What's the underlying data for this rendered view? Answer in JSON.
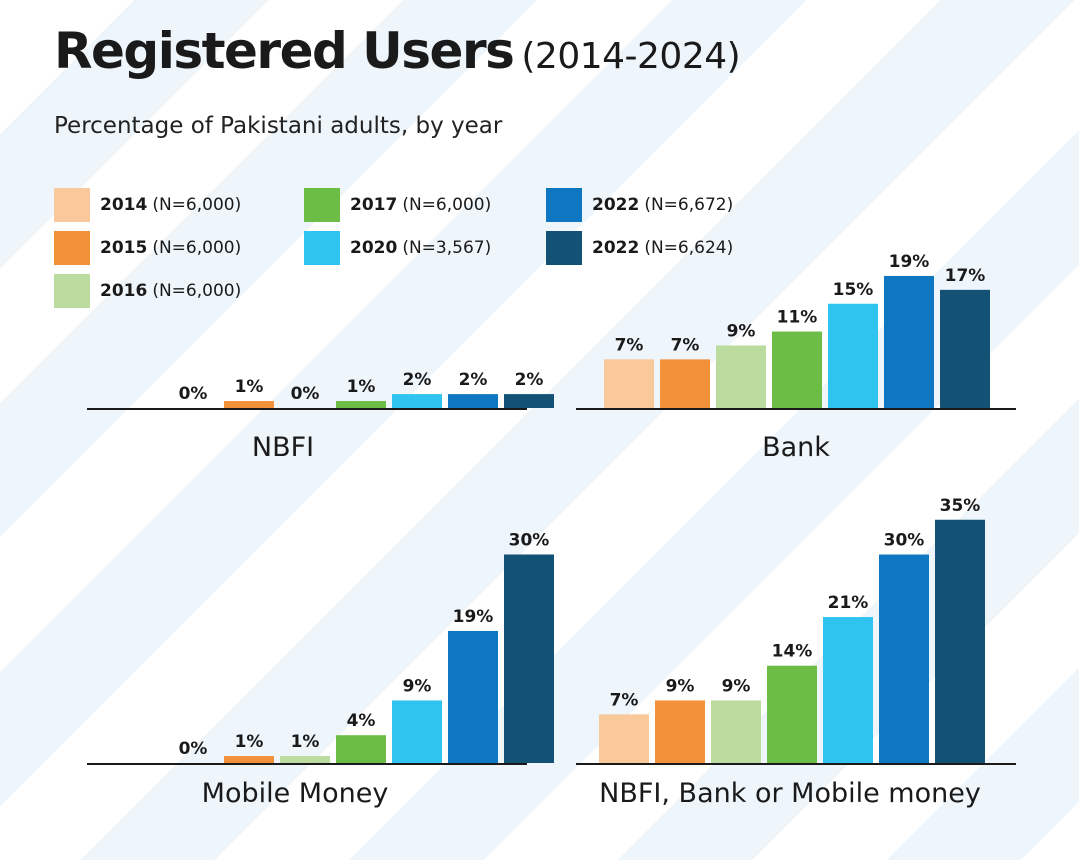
{
  "title": "Registered Users",
  "title_years": "(2014-2024)",
  "subtitle": "Percentage of Pakistani adults, by year",
  "legend": [
    {
      "year": "2014",
      "n": "(N=6,000)",
      "color": "#f9c89b"
    },
    {
      "year": "2015",
      "n": "(N=6,000)",
      "color": "#f3913a"
    },
    {
      "year": "2016",
      "n": "(N=6,000)",
      "color": "#bcdc9f"
    },
    {
      "year": "2017",
      "n": "(N=6,000)",
      "color": "#6bbd45"
    },
    {
      "year": "2020",
      "n": "(N=3,567)",
      "color": "#2ec4ef"
    },
    {
      "year": "2022",
      "n": "(N=6,672)",
      "color": "#0d78c1"
    },
    {
      "year": "2022",
      "n": "(N=6,624)",
      "color": "#135274"
    }
  ],
  "chart_data": [
    {
      "type": "bar",
      "title": "NBFI",
      "categories": [
        "2014",
        "2015",
        "2016",
        "2017",
        "2020",
        "2022",
        "2022"
      ],
      "values": [
        0,
        1,
        0,
        1,
        2,
        2,
        2
      ],
      "value_labels": [
        "0%",
        "1%",
        "0%",
        "1%",
        "2%",
        "2%",
        "2%"
      ],
      "ylim": [
        0,
        35
      ]
    },
    {
      "type": "bar",
      "title": "Bank",
      "categories": [
        "2014",
        "2015",
        "2016",
        "2017",
        "2020",
        "2022",
        "2022"
      ],
      "values": [
        7,
        7,
        9,
        11,
        15,
        19,
        17
      ],
      "value_labels": [
        "7%",
        "7%",
        "9%",
        "11%",
        "15%",
        "19%",
        "17%"
      ],
      "ylim": [
        0,
        35
      ]
    },
    {
      "type": "bar",
      "title": "Mobile Money",
      "categories": [
        "2014",
        "2015",
        "2016",
        "2017",
        "2020",
        "2022",
        "2022"
      ],
      "values": [
        0,
        1,
        1,
        4,
        9,
        19,
        30
      ],
      "value_labels": [
        "0%",
        "1%",
        "1%",
        "4%",
        "9%",
        "19%",
        "30%"
      ],
      "ylim": [
        0,
        35
      ]
    },
    {
      "type": "bar",
      "title": "NBFI, Bank or Mobile money",
      "categories": [
        "2014",
        "2015",
        "2016",
        "2017",
        "2020",
        "2022",
        "2022"
      ],
      "values": [
        7,
        9,
        9,
        14,
        21,
        30,
        35
      ],
      "value_labels": [
        "7%",
        "9%",
        "9%",
        "14%",
        "21%",
        "30%",
        "35%"
      ],
      "ylim": [
        0,
        35
      ]
    }
  ]
}
